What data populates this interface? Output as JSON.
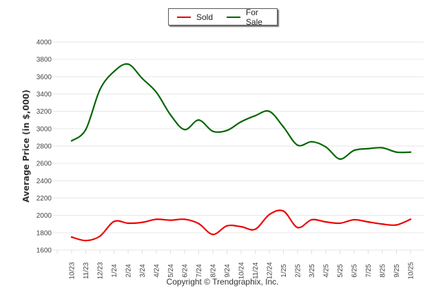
{
  "legend": {
    "items": [
      {
        "label": "Sold",
        "color": "#ee0000"
      },
      {
        "label": "For Sale",
        "color": "#006600"
      }
    ]
  },
  "copyright": "Copyright © Trendgraphix, Inc.",
  "chart_data": {
    "type": "line",
    "title": "",
    "xlabel": "",
    "ylabel": "Average Price (in $,000)",
    "ylim": [
      1600,
      4000
    ],
    "yticks": [
      1600,
      1800,
      2000,
      2200,
      2400,
      2600,
      2800,
      3000,
      3200,
      3400,
      3600,
      3800,
      4000
    ],
    "grid": true,
    "legend_position": "top-center",
    "categories": [
      "10/23",
      "11/23",
      "12/23",
      "1/24",
      "2/24",
      "3/24",
      "4/24",
      "5/24",
      "6/24",
      "7/24",
      "8/24",
      "9/24",
      "10/24",
      "11/24",
      "12/24",
      "1/25",
      "2/25",
      "3/25",
      "4/25",
      "5/25",
      "6/25",
      "7/25",
      "8/25",
      "9/25",
      "10/25"
    ],
    "series": [
      {
        "name": "Sold",
        "color": "#ee0000",
        "values": [
          1750,
          1710,
          1760,
          1930,
          1910,
          1920,
          1955,
          1945,
          1955,
          1905,
          1780,
          1880,
          1870,
          1840,
          2010,
          2050,
          1860,
          1950,
          1925,
          1910,
          1950,
          1925,
          1900,
          1890,
          1955
        ]
      },
      {
        "name": "For Sale",
        "color": "#006600",
        "values": [
          2860,
          2990,
          3450,
          3660,
          3745,
          3580,
          3420,
          3160,
          2990,
          3100,
          2970,
          2980,
          3080,
          3150,
          3200,
          3020,
          2810,
          2850,
          2790,
          2650,
          2750,
          2770,
          2780,
          2730,
          2730
        ]
      }
    ]
  }
}
